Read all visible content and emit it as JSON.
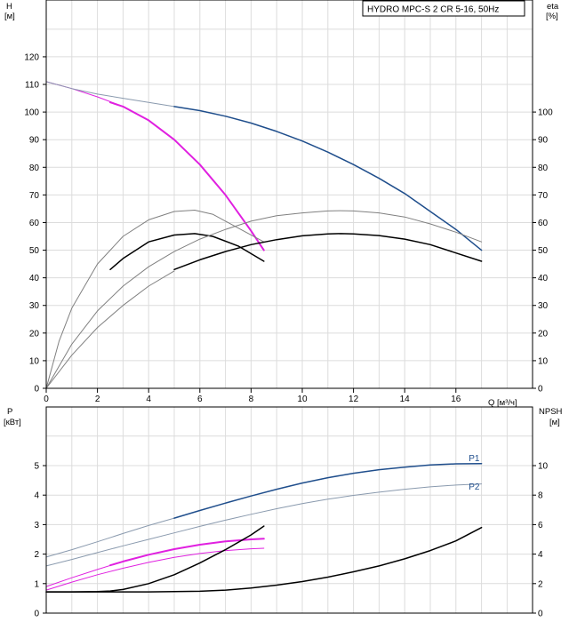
{
  "chart_data": [
    {
      "type": "line",
      "title": "HYDRO MPC-S 2 CR 5-16, 50Hz",
      "xlabel": "Q [м³/ч]",
      "ylabel_left_name": "H",
      "ylabel_left_unit": "[м]",
      "ylabel_right_name": "eta",
      "ylabel_right_unit": "[%]",
      "xlim": [
        0,
        19
      ],
      "ylim_left": [
        0,
        130
      ],
      "ylim_right": [
        0,
        130
      ],
      "x_ticks": [
        0,
        2,
        4,
        6,
        8,
        10,
        12,
        14,
        16
      ],
      "x_tick_labels": [
        "0",
        "2",
        "4",
        "6",
        "8",
        "10",
        "12",
        "14",
        "16"
      ],
      "y_left_ticks": [
        0,
        10,
        20,
        30,
        40,
        50,
        60,
        70,
        80,
        90,
        100,
        110,
        120
      ],
      "y_left_tick_labels": [
        "0",
        "10",
        "20",
        "30",
        "40",
        "50",
        "60",
        "70",
        "80",
        "90",
        "100",
        "110",
        "120"
      ],
      "y_right_ticks": [
        0,
        10,
        20,
        30,
        40,
        50,
        60,
        70,
        80,
        90,
        100
      ],
      "y_right_tick_labels": [
        "0",
        "10",
        "20",
        "30",
        "40",
        "50",
        "60",
        "70",
        "80",
        "90",
        "100"
      ],
      "grid": true,
      "series": [
        {
          "color": "#e020e0",
          "width": 1.0,
          "x": [
            0,
            1,
            2,
            3,
            4,
            5,
            6,
            7,
            8,
            8.5
          ],
          "y": [
            111,
            108.5,
            105.5,
            102,
            97,
            90,
            81,
            70,
            57,
            50
          ]
        },
        {
          "color": "#e020e0",
          "width": 2.0,
          "x": [
            2.5,
            3,
            4,
            5,
            6,
            7,
            8,
            8.5
          ],
          "y": [
            103.5,
            102,
            97,
            90,
            81,
            70,
            57,
            50
          ]
        },
        {
          "color": "#8a9aae",
          "width": 1.0,
          "x": [
            0,
            1,
            2,
            3,
            4,
            5
          ],
          "y": [
            111,
            108.5,
            106.5,
            105,
            103.5,
            102
          ]
        },
        {
          "color": "#1f4e8c",
          "width": 1.5,
          "x": [
            5,
            6,
            7,
            8,
            9,
            10,
            11,
            12,
            13,
            14,
            15,
            16,
            17
          ],
          "y": [
            102,
            100.5,
            98.5,
            96,
            93,
            89.5,
            85.5,
            81,
            76,
            70.5,
            64,
            57.5,
            50
          ]
        },
        {
          "color": "#808080",
          "width": 1.0,
          "x": [
            0,
            0.5,
            1,
            2,
            3,
            4,
            5,
            5.8,
            6.5,
            7.5,
            8.5
          ],
          "y": [
            0,
            17,
            29,
            45,
            55,
            61,
            64,
            64.5,
            63,
            58,
            53
          ]
        },
        {
          "color": "#000000",
          "width": 1.5,
          "x": [
            2.5,
            3,
            4,
            5,
            5.8,
            6.5,
            7.5,
            8.5
          ],
          "y": [
            43,
            47,
            53,
            55.5,
            56,
            55,
            51.5,
            46
          ]
        },
        {
          "color": "#808080",
          "width": 1.0,
          "x": [
            0,
            1,
            2,
            3,
            4,
            5,
            6,
            7,
            8,
            9,
            10,
            11,
            11.5,
            12,
            13,
            14,
            15,
            16,
            17
          ],
          "y": [
            0,
            16,
            28,
            37,
            44,
            49.5,
            54,
            57.5,
            60.5,
            62.5,
            63.5,
            64.2,
            64.3,
            64.2,
            63.5,
            62,
            59.5,
            56.5,
            53
          ]
        },
        {
          "color": "#808080",
          "width": 1.0,
          "x": [
            0,
            1,
            2,
            3,
            4,
            5
          ],
          "y": [
            0,
            12,
            22,
            30,
            37,
            42.5
          ]
        },
        {
          "color": "#000000",
          "width": 1.5,
          "x": [
            5,
            6,
            7,
            8,
            9,
            10,
            11,
            11.5,
            12,
            13,
            14,
            15,
            16,
            17
          ],
          "y": [
            43,
            46.5,
            49.5,
            52,
            53.8,
            55.2,
            55.9,
            56,
            55.9,
            55.3,
            54,
            52,
            49,
            46
          ]
        }
      ]
    },
    {
      "type": "line",
      "ylabel_left_name": "P",
      "ylabel_left_unit": "[кВт]",
      "ylabel_right_name": "NPSH",
      "ylabel_right_unit": "[м]",
      "xlim": [
        0,
        19
      ],
      "ylim_left": [
        0,
        6
      ],
      "ylim_right": [
        0,
        12
      ],
      "y_left_ticks": [
        0,
        1,
        2,
        3,
        4,
        5
      ],
      "y_left_tick_labels": [
        "0",
        "1",
        "2",
        "3",
        "4",
        "5"
      ],
      "y_right_ticks": [
        0,
        2,
        4,
        6,
        8,
        10
      ],
      "y_right_tick_labels": [
        "0",
        "2",
        "4",
        "6",
        "8",
        "10"
      ],
      "grid": true,
      "series_labels": [
        {
          "text": "P1",
          "x": 16.5,
          "y": 5.15,
          "color": "#1f4e8c"
        },
        {
          "text": "P2",
          "x": 16.5,
          "y": 4.18,
          "color": "#1f4e8c"
        }
      ],
      "series": [
        {
          "color": "#8a9aae",
          "width": 1.0,
          "x": [
            0,
            1,
            2,
            3,
            4,
            5
          ],
          "y": [
            1.9,
            2.15,
            2.42,
            2.7,
            2.97,
            3.22
          ]
        },
        {
          "color": "#1f4e8c",
          "width": 1.5,
          "x": [
            5,
            6,
            7,
            8,
            9,
            10,
            11,
            12,
            13,
            14,
            15,
            16,
            17
          ],
          "y": [
            3.22,
            3.48,
            3.73,
            3.97,
            4.2,
            4.41,
            4.59,
            4.74,
            4.86,
            4.95,
            5.02,
            5.06,
            5.07
          ]
        },
        {
          "color": "#8a9aae",
          "width": 1.0,
          "x": [
            0,
            1,
            2,
            3,
            4,
            5,
            6,
            7,
            8,
            9,
            10,
            11,
            12,
            13,
            14,
            15,
            16,
            17
          ],
          "y": [
            1.6,
            1.82,
            2.05,
            2.28,
            2.5,
            2.72,
            2.94,
            3.15,
            3.35,
            3.54,
            3.71,
            3.86,
            3.99,
            4.1,
            4.2,
            4.28,
            4.34,
            4.38
          ]
        },
        {
          "color": "#e020e0",
          "width": 1.0,
          "x": [
            0,
            1,
            2,
            3,
            4,
            5,
            6,
            7,
            8,
            8.5
          ],
          "y": [
            0.9,
            1.2,
            1.48,
            1.75,
            1.98,
            2.17,
            2.32,
            2.43,
            2.5,
            2.52
          ]
        },
        {
          "color": "#e020e0",
          "width": 2.0,
          "x": [
            2.5,
            3,
            4,
            5,
            6,
            7,
            8,
            8.5
          ],
          "y": [
            1.62,
            1.75,
            1.98,
            2.17,
            2.32,
            2.43,
            2.5,
            2.52
          ]
        },
        {
          "color": "#e020e0",
          "width": 1.0,
          "x": [
            0,
            1,
            2,
            3,
            4,
            5,
            6,
            7,
            8,
            8.5
          ],
          "y": [
            0.78,
            1.05,
            1.3,
            1.52,
            1.72,
            1.89,
            2.02,
            2.12,
            2.18,
            2.2
          ]
        },
        {
          "color": "#000000",
          "width": 1.5,
          "x": [
            0,
            1,
            2,
            2.5,
            3,
            4,
            5,
            6,
            7,
            8,
            8.5
          ],
          "y": [
            0.72,
            0.72,
            0.73,
            0.75,
            0.8,
            1.0,
            1.3,
            1.7,
            2.15,
            2.65,
            2.95
          ]
        },
        {
          "color": "#000000",
          "width": 1.5,
          "x": [
            0,
            2,
            4,
            6,
            7,
            8,
            9,
            10,
            11,
            12,
            13,
            14,
            15,
            16,
            17
          ],
          "y": [
            0.72,
            0.72,
            0.72,
            0.74,
            0.78,
            0.85,
            0.95,
            1.07,
            1.22,
            1.4,
            1.6,
            1.84,
            2.12,
            2.45,
            2.9
          ]
        }
      ]
    }
  ]
}
